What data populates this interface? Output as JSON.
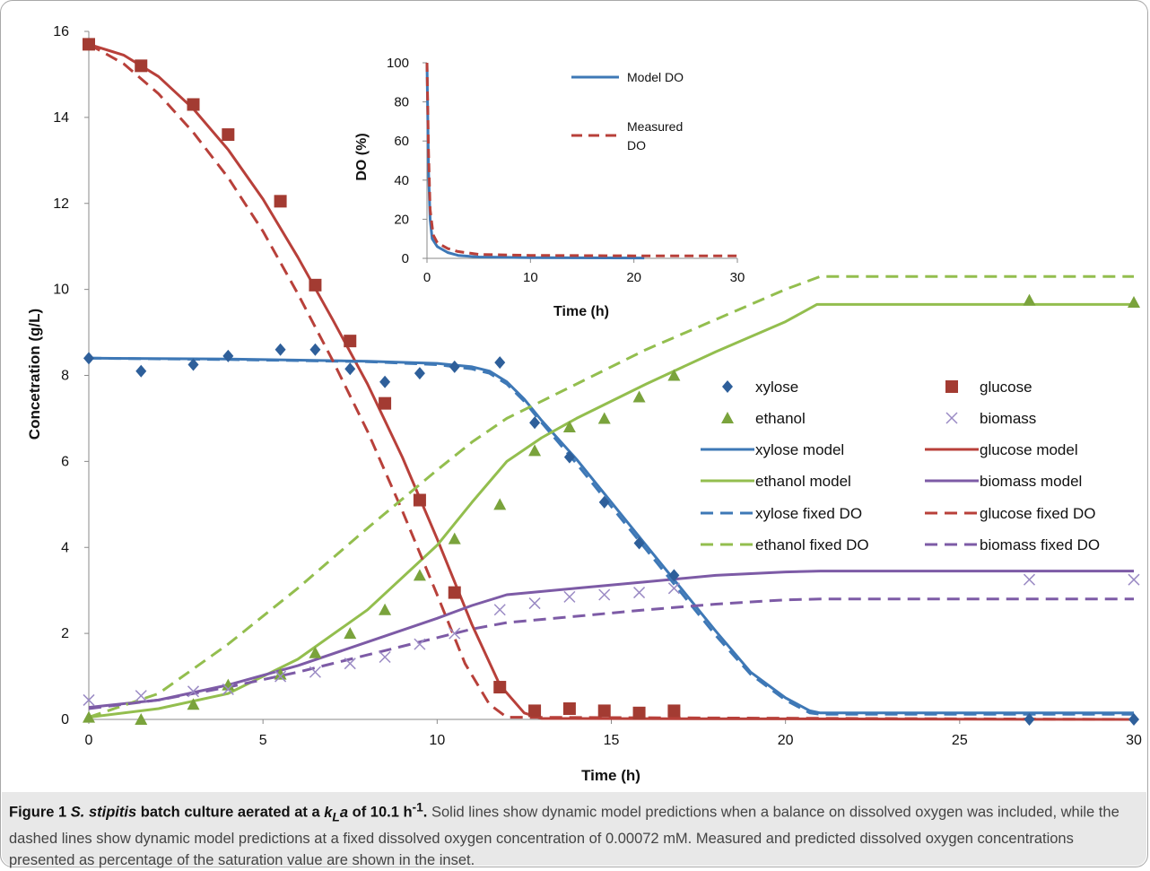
{
  "caption": {
    "figure_label": "Figure 1",
    "organism": "S. stipitis",
    "title_rest_1": "batch culture aerated at a",
    "kla_symbol_k": "k",
    "kla_symbol_sub": "L",
    "kla_symbol_a": "a",
    "title_rest_2": "of 10.1 h",
    "title_sup": "-1",
    "title_end": ".",
    "body": "Solid lines show dynamic model predictions when a balance on dissolved oxygen was included, while the dashed lines show dynamic model predictions at a fixed dissolved oxygen concentration of 0.00072 mM. Measured and predicted dissolved oxygen concentrations presented as percentage of the saturation value are shown in the inset."
  },
  "colors": {
    "xylose": "#3e78b6",
    "glucose": "#b8403a",
    "ethanol": "#93be4e",
    "biomass": "#7d5ba6",
    "xylose_marker": "#2e5f9a",
    "glucose_marker": "#a33b32",
    "ethanol_marker": "#7aa33c",
    "biomass_marker": "#9a8ac4"
  },
  "chart_data": [
    {
      "type": "scatter",
      "xlabel": "Time (h)",
      "ylabel": "Concetration (g/L)",
      "xlim": [
        0,
        30
      ],
      "ylim": [
        0,
        16
      ],
      "xticks": [
        0,
        5,
        10,
        15,
        20,
        25,
        30
      ],
      "yticks": [
        0,
        2,
        4,
        6,
        8,
        10,
        12,
        14,
        16
      ],
      "legend_position": "center-right",
      "series": [
        {
          "name": "xylose",
          "kind": "marker",
          "marker": "diamond",
          "color_key": "xylose_marker",
          "points": [
            [
              0,
              8.4
            ],
            [
              1.5,
              8.1
            ],
            [
              3,
              8.25
            ],
            [
              4,
              8.45
            ],
            [
              5.5,
              8.6
            ],
            [
              6.5,
              8.6
            ],
            [
              7.5,
              8.15
            ],
            [
              8.5,
              7.85
            ],
            [
              9.5,
              8.05
            ],
            [
              10.5,
              8.2
            ],
            [
              11.8,
              8.3
            ],
            [
              12.8,
              6.9
            ],
            [
              13.8,
              6.1
            ],
            [
              14.8,
              5.05
            ],
            [
              15.8,
              4.1
            ],
            [
              16.8,
              3.35
            ],
            [
              27,
              0.0
            ],
            [
              30,
              0.0
            ]
          ]
        },
        {
          "name": "glucose",
          "kind": "marker",
          "marker": "square",
          "color_key": "glucose_marker",
          "points": [
            [
              0,
              15.7
            ],
            [
              1.5,
              15.2
            ],
            [
              3,
              14.3
            ],
            [
              4,
              13.6
            ],
            [
              5.5,
              12.05
            ],
            [
              6.5,
              10.1
            ],
            [
              7.5,
              8.8
            ],
            [
              8.5,
              7.35
            ],
            [
              9.5,
              5.1
            ],
            [
              10.5,
              2.95
            ],
            [
              11.8,
              0.75
            ],
            [
              12.8,
              0.2
            ],
            [
              13.8,
              0.25
            ],
            [
              14.8,
              0.2
            ],
            [
              15.8,
              0.15
            ],
            [
              16.8,
              0.2
            ]
          ]
        },
        {
          "name": "ethanol",
          "kind": "marker",
          "marker": "triangle",
          "color_key": "ethanol_marker",
          "points": [
            [
              0,
              0.05
            ],
            [
              1.5,
              0.0
            ],
            [
              3,
              0.35
            ],
            [
              4,
              0.8
            ],
            [
              5.5,
              1.05
            ],
            [
              6.5,
              1.55
            ],
            [
              7.5,
              2.0
            ],
            [
              8.5,
              2.55
            ],
            [
              9.5,
              3.35
            ],
            [
              10.5,
              4.2
            ],
            [
              11.8,
              5.0
            ],
            [
              12.8,
              6.25
            ],
            [
              13.8,
              6.8
            ],
            [
              14.8,
              7.0
            ],
            [
              15.8,
              7.5
            ],
            [
              16.8,
              8.0
            ],
            [
              27,
              9.75
            ],
            [
              30,
              9.7
            ]
          ]
        },
        {
          "name": "biomass",
          "kind": "marker",
          "marker": "x",
          "color_key": "biomass_marker",
          "points": [
            [
              0,
              0.45
            ],
            [
              1.5,
              0.55
            ],
            [
              3,
              0.65
            ],
            [
              4,
              0.7
            ],
            [
              5.5,
              1.0
            ],
            [
              6.5,
              1.1
            ],
            [
              7.5,
              1.3
            ],
            [
              8.5,
              1.45
            ],
            [
              9.5,
              1.75
            ],
            [
              10.5,
              2.0
            ],
            [
              11.8,
              2.55
            ],
            [
              12.8,
              2.7
            ],
            [
              13.8,
              2.85
            ],
            [
              14.8,
              2.9
            ],
            [
              15.8,
              2.95
            ],
            [
              16.8,
              3.05
            ],
            [
              27,
              3.25
            ],
            [
              30,
              3.25
            ]
          ]
        },
        {
          "name": "xylose model",
          "kind": "line",
          "dash": false,
          "color_key": "xylose",
          "points": [
            [
              0,
              8.4
            ],
            [
              4,
              8.38
            ],
            [
              8,
              8.33
            ],
            [
              10,
              8.28
            ],
            [
              11,
              8.2
            ],
            [
              11.5,
              8.1
            ],
            [
              12,
              7.85
            ],
            [
              12.5,
              7.45
            ],
            [
              13,
              6.95
            ],
            [
              14,
              6.05
            ],
            [
              15,
              5.05
            ],
            [
              16,
              4.05
            ],
            [
              17,
              3.05
            ],
            [
              18,
              2.05
            ],
            [
              19,
              1.1
            ],
            [
              20,
              0.5
            ],
            [
              20.7,
              0.2
            ],
            [
              21,
              0.15
            ],
            [
              30,
              0.15
            ]
          ]
        },
        {
          "name": "glucose model",
          "kind": "line",
          "dash": false,
          "color_key": "glucose",
          "points": [
            [
              0,
              15.7
            ],
            [
              1,
              15.45
            ],
            [
              2,
              14.95
            ],
            [
              3,
              14.2
            ],
            [
              4,
              13.25
            ],
            [
              5,
              12.1
            ],
            [
              6,
              10.75
            ],
            [
              7,
              9.3
            ],
            [
              8,
              7.8
            ],
            [
              9,
              6.1
            ],
            [
              10,
              4.2
            ],
            [
              11,
              2.2
            ],
            [
              11.8,
              0.8
            ],
            [
              12.5,
              0.15
            ],
            [
              13,
              0.02
            ],
            [
              30,
              0.0
            ]
          ]
        },
        {
          "name": "ethanol model",
          "kind": "line",
          "dash": false,
          "color_key": "ethanol",
          "points": [
            [
              0,
              0.05
            ],
            [
              2,
              0.25
            ],
            [
              4,
              0.6
            ],
            [
              6,
              1.4
            ],
            [
              8,
              2.55
            ],
            [
              10,
              4.05
            ],
            [
              11,
              5.05
            ],
            [
              12,
              6.0
            ],
            [
              13,
              6.55
            ],
            [
              14,
              7.0
            ],
            [
              16,
              7.8
            ],
            [
              18,
              8.55
            ],
            [
              20,
              9.25
            ],
            [
              20.9,
              9.65
            ],
            [
              30,
              9.65
            ]
          ]
        },
        {
          "name": "biomass model",
          "kind": "line",
          "dash": false,
          "color_key": "biomass",
          "points": [
            [
              0,
              0.28
            ],
            [
              2,
              0.45
            ],
            [
              4,
              0.8
            ],
            [
              6,
              1.25
            ],
            [
              8,
              1.8
            ],
            [
              10,
              2.35
            ],
            [
              11,
              2.65
            ],
            [
              12,
              2.9
            ],
            [
              14,
              3.05
            ],
            [
              16,
              3.2
            ],
            [
              18,
              3.35
            ],
            [
              20,
              3.43
            ],
            [
              21,
              3.45
            ],
            [
              30,
              3.45
            ]
          ]
        },
        {
          "name": "xylose fixed DO",
          "kind": "line",
          "dash": true,
          "color_key": "xylose",
          "points": [
            [
              0,
              8.4
            ],
            [
              4,
              8.37
            ],
            [
              8,
              8.32
            ],
            [
              10,
              8.25
            ],
            [
              11,
              8.15
            ],
            [
              11.5,
              8.05
            ],
            [
              12,
              7.8
            ],
            [
              12.5,
              7.4
            ],
            [
              13,
              6.9
            ],
            [
              14,
              5.95
            ],
            [
              15,
              4.95
            ],
            [
              16,
              3.95
            ],
            [
              17,
              2.95
            ],
            [
              18,
              1.95
            ],
            [
              19,
              1.05
            ],
            [
              20,
              0.45
            ],
            [
              20.7,
              0.15
            ],
            [
              21,
              0.12
            ],
            [
              30,
              0.12
            ]
          ]
        },
        {
          "name": "glucose fixed DO",
          "kind": "line",
          "dash": true,
          "color_key": "glucose",
          "points": [
            [
              0,
              15.7
            ],
            [
              1,
              15.25
            ],
            [
              2,
              14.55
            ],
            [
              3,
              13.65
            ],
            [
              4,
              12.6
            ],
            [
              5,
              11.35
            ],
            [
              6,
              9.9
            ],
            [
              7,
              8.35
            ],
            [
              8,
              6.7
            ],
            [
              9,
              4.85
            ],
            [
              10,
              2.9
            ],
            [
              10.8,
              1.3
            ],
            [
              11.5,
              0.35
            ],
            [
              12,
              0.05
            ],
            [
              30,
              0.0
            ]
          ]
        },
        {
          "name": "ethanol fixed DO",
          "kind": "line",
          "dash": true,
          "color_key": "ethanol",
          "points": [
            [
              0,
              0.05
            ],
            [
              2,
              0.6
            ],
            [
              4,
              1.75
            ],
            [
              6,
              3.05
            ],
            [
              8,
              4.45
            ],
            [
              10,
              5.8
            ],
            [
              11,
              6.45
            ],
            [
              12,
              7.0
            ],
            [
              14,
              7.8
            ],
            [
              16,
              8.6
            ],
            [
              18,
              9.3
            ],
            [
              20,
              10.0
            ],
            [
              21,
              10.3
            ],
            [
              30,
              10.3
            ]
          ]
        },
        {
          "name": "biomass fixed DO",
          "kind": "line",
          "dash": true,
          "color_key": "biomass",
          "points": [
            [
              0,
              0.25
            ],
            [
              2,
              0.45
            ],
            [
              4,
              0.75
            ],
            [
              6,
              1.1
            ],
            [
              8,
              1.5
            ],
            [
              10,
              1.9
            ],
            [
              11,
              2.1
            ],
            [
              12,
              2.25
            ],
            [
              14,
              2.4
            ],
            [
              16,
              2.55
            ],
            [
              18,
              2.68
            ],
            [
              20,
              2.78
            ],
            [
              21,
              2.8
            ],
            [
              30,
              2.8
            ]
          ]
        }
      ],
      "legend": [
        {
          "label": "xylose",
          "series": "xylose"
        },
        {
          "label": "glucose",
          "series": "glucose"
        },
        {
          "label": "ethanol",
          "series": "ethanol"
        },
        {
          "label": "biomass",
          "series": "biomass"
        },
        {
          "label": "xylose model",
          "series": "xylose model"
        },
        {
          "label": "glucose model",
          "series": "glucose model"
        },
        {
          "label": "ethanol model",
          "series": "ethanol model"
        },
        {
          "label": "biomass model",
          "series": "biomass model"
        },
        {
          "label": "xylose fixed DO",
          "series": "xylose fixed DO"
        },
        {
          "label": "glucose fixed DO",
          "series": "glucose fixed DO"
        },
        {
          "label": "ethanol fixed DO",
          "series": "ethanol fixed DO"
        },
        {
          "label": "biomass fixed DO",
          "series": "biomass fixed DO"
        }
      ]
    },
    {
      "type": "line",
      "inset": true,
      "xlabel": "Time (h)",
      "ylabel": "DO (%)",
      "xlim": [
        0,
        30
      ],
      "ylim": [
        0,
        100
      ],
      "xticks": [
        0,
        10,
        20,
        30
      ],
      "yticks": [
        0,
        20,
        40,
        60,
        80,
        100
      ],
      "legend_position": "top-right",
      "series": [
        {
          "name": "Model DO",
          "dash": false,
          "color_key": "xylose",
          "points": [
            [
              0,
              100
            ],
            [
              0.15,
              45
            ],
            [
              0.3,
              20
            ],
            [
              0.5,
              10
            ],
            [
              1,
              6
            ],
            [
              2,
              3
            ],
            [
              3,
              1.5
            ],
            [
              5,
              0.7
            ],
            [
              10,
              0.3
            ],
            [
              21,
              0.2
            ]
          ]
        },
        {
          "name": "Measured DO",
          "dash": true,
          "color_key": "glucose",
          "points": [
            [
              0,
              100
            ],
            [
              0.15,
              55
            ],
            [
              0.3,
              25
            ],
            [
              0.6,
              12
            ],
            [
              1,
              8
            ],
            [
              2,
              5
            ],
            [
              3,
              3.5
            ],
            [
              5,
              2
            ],
            [
              10,
              1.5
            ],
            [
              20,
              1.3
            ],
            [
              30,
              1.3
            ]
          ]
        }
      ],
      "legend": [
        {
          "label": "Model DO",
          "series": "Model DO"
        },
        {
          "label_line1": "Measured",
          "label_line2": "DO",
          "series": "Measured DO"
        }
      ]
    }
  ]
}
